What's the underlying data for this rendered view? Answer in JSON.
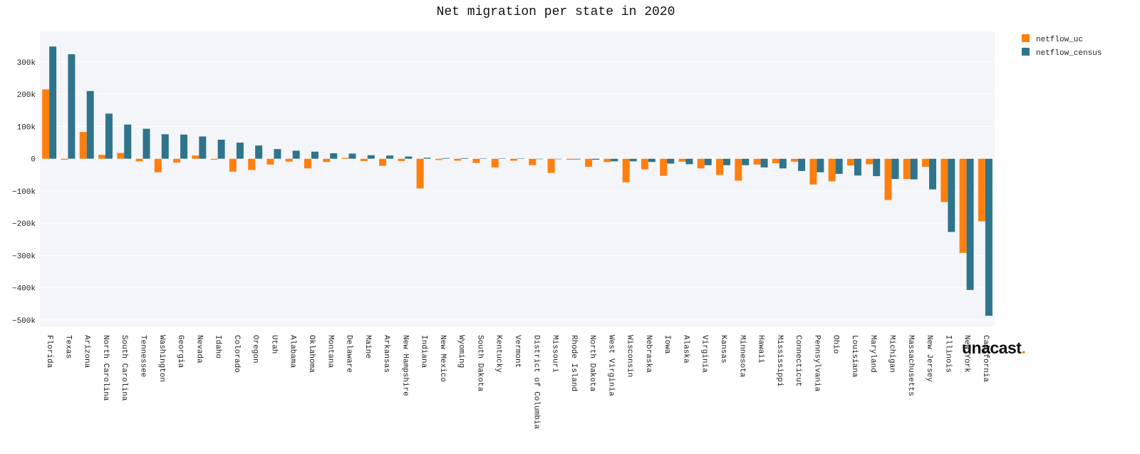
{
  "chart_data": {
    "type": "bar",
    "title": "Net migration per state in 2020",
    "xlabel": "",
    "ylabel": "",
    "ylim": [
      -520000,
      395000
    ],
    "yticks": [
      {
        "value": 300000,
        "label": "300k"
      },
      {
        "value": 200000,
        "label": "200k"
      },
      {
        "value": 100000,
        "label": "100k"
      },
      {
        "value": 0,
        "label": "0"
      },
      {
        "value": -100000,
        "label": "−100k"
      },
      {
        "value": -200000,
        "label": "−200k"
      },
      {
        "value": -300000,
        "label": "−300k"
      },
      {
        "value": -400000,
        "label": "−400k"
      },
      {
        "value": -500000,
        "label": "−500k"
      }
    ],
    "grid": true,
    "legend_position": "top-right",
    "categories": [
      "Florida",
      "Texas",
      "Arizona",
      "North Carolina",
      "South Carolina",
      "Tennessee",
      "Washington",
      "Georgia",
      "Nevada",
      "Idaho",
      "Colorado",
      "Oregon",
      "Utah",
      "Alabama",
      "Oklahoma",
      "Montana",
      "Delaware",
      "Maine",
      "Arkansas",
      "New Hampshire",
      "Indiana",
      "New Mexico",
      "Wyoming",
      "South Dakota",
      "Kentucky",
      "Vermont",
      "District of Columbia",
      "Missouri",
      "Rhode Island",
      "North Dakota",
      "West Virginia",
      "Wisconsin",
      "Nebraska",
      "Iowa",
      "Alaska",
      "Virginia",
      "Kansas",
      "Minnesota",
      "Hawaii",
      "Mississippi",
      "Connecticut",
      "Pennsylvania",
      "Ohio",
      "Louisiana",
      "Maryland",
      "Michigan",
      "Massachusetts",
      "New Jersey",
      "Illinois",
      "New York",
      "California"
    ],
    "series": [
      {
        "name": "netflow_uc",
        "color": "#ff7f0e",
        "values": [
          215000,
          -3000,
          83000,
          12000,
          18000,
          -8000,
          -42000,
          -12000,
          10000,
          -3000,
          -40000,
          -35000,
          -18000,
          -9000,
          -30000,
          -10000,
          3000,
          -7000,
          -22000,
          -7000,
          -92000,
          -4000,
          -6000,
          -13000,
          -27000,
          -6000,
          -20000,
          -44000,
          -3000,
          -25000,
          -10000,
          -73000,
          -33000,
          -53000,
          -9000,
          -30000,
          -50000,
          -68000,
          -18000,
          -14000,
          -9000,
          -80000,
          -70000,
          -21000,
          -17000,
          -128000,
          -63000,
          -25000,
          -134000,
          -292000,
          -194000
        ]
      },
      {
        "name": "netflow_census",
        "color": "#2e748c",
        "values": [
          348000,
          324000,
          210000,
          140000,
          106000,
          93000,
          76000,
          75000,
          69000,
          59000,
          50000,
          41000,
          30000,
          25000,
          22000,
          17000,
          16000,
          11000,
          10000,
          7000,
          3000,
          2000,
          2000,
          1000,
          1000,
          1000,
          -1000,
          -1000,
          -2000,
          -3000,
          -8000,
          -8000,
          -10000,
          -15000,
          -17000,
          -20000,
          -20000,
          -20000,
          -27000,
          -30000,
          -38000,
          -42000,
          -47000,
          -52000,
          -54000,
          -63000,
          -64000,
          -95000,
          -227000,
          -407000,
          -487000
        ]
      }
    ]
  },
  "logo": {
    "text": "unacast",
    "dot": "."
  }
}
